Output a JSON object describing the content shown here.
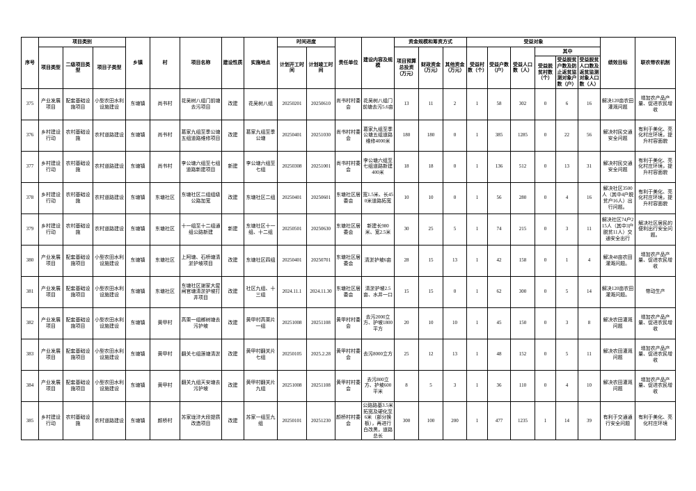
{
  "table": {
    "header": {
      "serial": "序号",
      "category_group": "项目类别",
      "category_type": "项目类型",
      "category_level2": "二级项目类型",
      "category_sub": "项目子类型",
      "town": "乡镇",
      "village": "村",
      "project_name": "项目名称",
      "build_nature": "建设性质",
      "location": "实施地点",
      "schedule_group": "时间进度",
      "start_date": "计划开工时间",
      "end_date": "计划竣工时间",
      "responsible_unit": "责任单位",
      "content_scale": "建设内容及规模",
      "funding_group": "资金规模和筹资方式",
      "total_budget": "项目预算总投资（万元）",
      "fiscal_funds": "财政资金（万元）",
      "other_funds": "其他资金（万元）",
      "beneficiary_group": "受益对象",
      "beneficiary_villages": "受益村数（个）",
      "beneficiary_households": "受益户数（户）",
      "beneficiary_population": "受益人口数（人）",
      "among_group": "其中",
      "poverty_villages": "受益脱贫村数（个）",
      "poverty_households": "受益脱贫户数及防止返贫监测对象户数（户）",
      "poverty_population": "受益脱贫人口数及返贫监测对象人口数（人）",
      "performance_goal": "绩效目标",
      "linkage_mechanism": "联农带农机制"
    },
    "column_keys": [
      "serial",
      "category-type",
      "category-level2",
      "category-sub",
      "town",
      "village",
      "project-name",
      "build-nature",
      "location",
      "start-date",
      "end-date",
      "responsible-unit",
      "content-scale",
      "total-budget",
      "fiscal-funds",
      "other-funds",
      "beneficiary-villages",
      "beneficiary-households",
      "beneficiary-population",
      "poverty-villages",
      "poverty-households",
      "poverty-population",
      "performance-goal",
      "linkage-mechanism"
    ],
    "rows": [
      [
        "375",
        "产业发展项目",
        "配套基础设施项目",
        "小型农田水利设施建设",
        "东塘镇",
        "尚书村",
        "花吴树八组门前塘去污项目",
        "改建",
        "花吴树八组",
        "20250201",
        "20250610",
        "尚书村村委会",
        "花吴树八组门前塘去污5.6亩",
        "13",
        "11",
        "2",
        "1",
        "58",
        "302",
        "0",
        "6",
        "16",
        "解决120亩农田灌溉问题",
        "增加农产品产量、促进农民增收"
      ],
      [
        "376",
        "乡村建设行动",
        "农村基础设施",
        "农村道路建设",
        "东塘镇",
        "尚书村",
        "葛家九组至季公塘五组道路维修项目",
        "改建",
        "葛家九组至季公塘",
        "20250401",
        "20251030",
        "尚书村村委会",
        "葛家九组至季公塘五组道路维修4000米",
        "180",
        "180",
        "0",
        "1",
        "385",
        "1285",
        "0",
        "22",
        "56",
        "解决村民交通安全问题",
        "有利于美化、亮化村庄环境，提升村容面貌"
      ],
      [
        "377",
        "乡村建设行动",
        "农村基础设施",
        "农村道路建设",
        "东塘镇",
        "尚书村",
        "李公塘六组至七组道路新建项目",
        "新建",
        "李公塘六组至七组",
        "20250308",
        "20251001",
        "尚书村村委会",
        "李公塘六组至七组道路新建400米",
        "18",
        "18",
        "0",
        "1",
        "136",
        "512",
        "0",
        "13",
        "31",
        "解决村民交通安全问题",
        "有利于美化、亮化村庄环境，提升村容面貌"
      ],
      [
        "378",
        "乡村建设行动",
        "农村基础设施",
        "农村道路建设",
        "东塘镇",
        "东塘社区",
        "东塘社区二组组级公路加宽",
        "改建",
        "东塘社区二组",
        "20250401",
        "20250601",
        "东塘社区居委会",
        "宽1.5米、长450米道路拓宽",
        "10",
        "10",
        "0",
        "1",
        "56",
        "280",
        "0",
        "4",
        "16",
        "解决社区3500人（其中4户脱贫户16人）出行问题。",
        "有利于美化、亮化村庄环境，提升村容面貌"
      ],
      [
        "379",
        "乡村建设行动",
        "农村基础设施",
        "农村道路建设",
        "东塘镇",
        "东塘社区",
        "十一组至十二组通组公路新建",
        "新建",
        "东塘社区十一组、十二组",
        "20250501",
        "20250630",
        "东塘社区居委会",
        "新建长980米、宽2.5米",
        "30",
        "25",
        "5",
        "1",
        "74",
        "215",
        "0",
        "3",
        "11",
        "解决社区74户215人（其中3户脱贫11人）交通安全出行",
        "解决社区居民的便利出行安全问题。"
      ],
      [
        "380",
        "产业发展项目",
        "配套基础设施项目",
        "小型农田水利设施建设",
        "东塘镇",
        "东塘社区",
        "上阿塘、石桥塘清淤护坡项目",
        "改建",
        "东塘社区四组",
        "20250401",
        "20250701",
        "东塘社区居委会",
        "清淤护坡6亩",
        "28",
        "15",
        "13",
        "1",
        "42",
        "158",
        "0",
        "1",
        "4",
        "解决48亩农田灌溉问题。",
        "增加农产品产量、促进农民增收"
      ],
      [
        "381",
        "产业发展项目",
        "配套基础设施项目",
        "小型农田水利设施建设",
        "东塘镇",
        "东塘社区",
        "东塘社区谢家大屋闸官塘清淤护坡打井项目",
        "改建",
        "社区九组、十三组",
        "2024.11.1",
        "2024.11.30",
        "东塘社区居委会",
        "清淤护坡2.5亩、水井一口",
        "15",
        "15",
        "0",
        "1",
        "62",
        "300",
        "0",
        "5",
        "14",
        "解决120亩农田灌溉问题。",
        "带动生产"
      ],
      [
        "382",
        "产业发展项目",
        "配套基础设施项目",
        "小型农田水利设施建设",
        "东塘镇",
        "黄甲村",
        "高栗一组榔树塘去污护坡",
        "改建",
        "黄甲村高栗片一组",
        "20251008",
        "20251108",
        "黄甲村村委会",
        "去污2000立方、护坡1800平方",
        "20",
        "10",
        "10",
        "1",
        "45",
        "150",
        "0",
        "3",
        "8",
        "解决农田灌溉问题",
        "增加农产品产量、促进农民增收"
      ],
      [
        "383",
        "产业发展项目",
        "配套基础设施项目",
        "小型农田水利设施建设",
        "东塘镇",
        "黄甲村",
        "翻关七组莲塘清淤",
        "改建",
        "黄甲村翻关片七组",
        "20250105",
        "2025.2.28",
        "黄甲村村委会",
        "去污8000立方",
        "25",
        "12",
        "13",
        "1",
        "48",
        "152",
        "0",
        "5",
        "11",
        "解决农田灌溉问题",
        "增加农产品产量、促进农民增收"
      ],
      [
        "384",
        "产业发展项目",
        "配套基础设施项目",
        "小型农田水利设施建设",
        "东塘镇",
        "黄甲村",
        "翻关九组天安塘去污护坡",
        "改建",
        "黄甲村翻关片九组",
        "20251008",
        "20251108",
        "黄甲村村委会",
        "去污800立方、护坡600平米",
        "8",
        "5",
        "3",
        "1",
        "36",
        "110",
        "0",
        "4",
        "10",
        "解决农田灌溉问题",
        "增加农产品产量、促进农民增收"
      ],
      [
        "385",
        "乡村建设行动",
        "农村基础设施",
        "农村道路建设",
        "东塘镇",
        "颜桥村",
        "苏家垅浒大段提质改造项目",
        "改建",
        "苏家一组至九组",
        "20250101",
        "20251230",
        "颜桥村村委会",
        "公路路基3.5米拓宽及硬化至6米（部分换板），再进行白改黑，道路总长",
        "300",
        "100",
        "200",
        "1",
        "477",
        "1235",
        "1",
        "14",
        "39",
        "有利于交通通行安全问题",
        "有利于美化、亮化村庄环境"
      ]
    ]
  }
}
